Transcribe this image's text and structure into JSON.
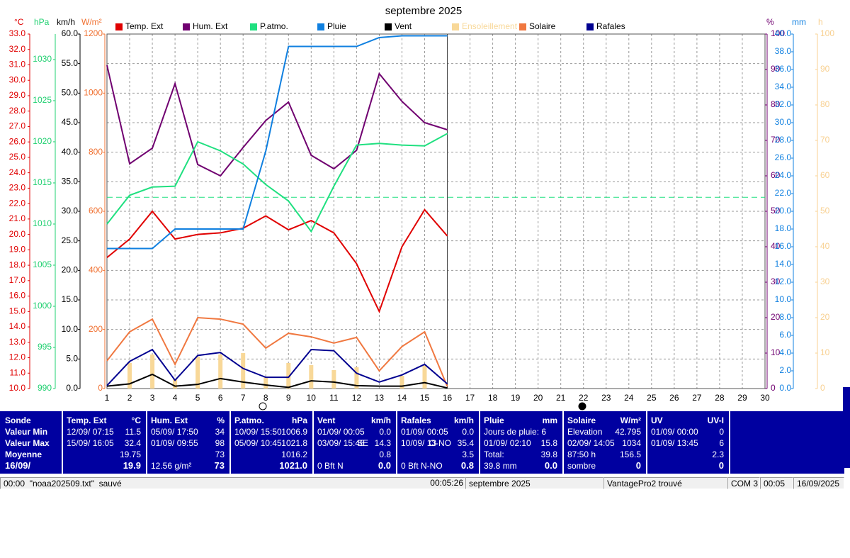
{
  "chart_data": {
    "type": "line",
    "title": "septembre 2025",
    "grid": true,
    "xlim": [
      1,
      30
    ],
    "xticks": [
      1,
      2,
      3,
      4,
      5,
      6,
      7,
      8,
      9,
      10,
      11,
      12,
      13,
      14,
      15,
      16,
      17,
      18,
      19,
      20,
      21,
      22,
      23,
      24,
      25,
      26,
      27,
      28,
      29,
      30
    ],
    "x": [
      1,
      2,
      3,
      4,
      5,
      6,
      7,
      8,
      9,
      10,
      11,
      12,
      13,
      14,
      15,
      16
    ],
    "axes": [
      {
        "unit": "°C",
        "side": "left",
        "color": "#e00000",
        "lim": [
          10,
          33
        ],
        "ticks": [
          {
            "value": 10,
            "label": "10.0"
          },
          {
            "value": 11,
            "label": "11.0"
          },
          {
            "value": 12,
            "label": "12.0"
          },
          {
            "value": 13,
            "label": "13.0"
          },
          {
            "value": 14,
            "label": "14.0"
          },
          {
            "value": 15,
            "label": "15.0"
          },
          {
            "value": 16,
            "label": "16.0"
          },
          {
            "value": 17,
            "label": "17.0"
          },
          {
            "value": 18,
            "label": "18.0"
          },
          {
            "value": 19,
            "label": "19.0"
          },
          {
            "value": 20,
            "label": "20.0"
          },
          {
            "value": 21,
            "label": "21.0"
          },
          {
            "value": 22,
            "label": "22.0"
          },
          {
            "value": 23,
            "label": "23.0"
          },
          {
            "value": 24,
            "label": "24.0"
          },
          {
            "value": 25,
            "label": "25.0"
          },
          {
            "value": 26,
            "label": "26.0"
          },
          {
            "value": 27,
            "label": "27.0"
          },
          {
            "value": 28,
            "label": "28.0"
          },
          {
            "value": 29,
            "label": "29.0"
          },
          {
            "value": 30,
            "label": "30.0"
          },
          {
            "value": 31,
            "label": "31.0"
          },
          {
            "value": 32,
            "label": "32.0"
          },
          {
            "value": 33,
            "label": "33.0"
          }
        ]
      },
      {
        "unit": "hPa",
        "side": "left",
        "color": "#20d070",
        "lim": [
          990,
          1033.1
        ],
        "ticks": [
          990,
          995,
          1000,
          1005,
          1010,
          1015,
          1020,
          1025,
          1030
        ]
      },
      {
        "unit": "km/h",
        "side": "left",
        "color": "#000000",
        "lim": [
          0,
          60
        ],
        "ticks": [
          {
            "value": 0,
            "label": "0.0"
          },
          {
            "value": 5,
            "label": "5.0"
          },
          {
            "value": 10,
            "label": "10.0"
          },
          {
            "value": 15,
            "label": "15.0"
          },
          {
            "value": 20,
            "label": "20.0"
          },
          {
            "value": 25,
            "label": "25.0"
          },
          {
            "value": 30,
            "label": "30.0"
          },
          {
            "value": 35,
            "label": "35.0"
          },
          {
            "value": 40,
            "label": "40.0"
          },
          {
            "value": 45,
            "label": "45.0"
          },
          {
            "value": 50,
            "label": "50.0"
          },
          {
            "value": 55,
            "label": "55.0"
          },
          {
            "value": 60,
            "label": "60.0"
          }
        ]
      },
      {
        "unit": "W/m²",
        "side": "left",
        "color": "#f07030",
        "lim": [
          0,
          1200
        ],
        "ticks": [
          0,
          200,
          400,
          600,
          800,
          1000,
          1200
        ]
      },
      {
        "unit": "%",
        "side": "right",
        "color": "#700070",
        "lim": [
          0,
          100
        ],
        "ticks": [
          0,
          10,
          20,
          30,
          40,
          50,
          60,
          70,
          80,
          90,
          100
        ]
      },
      {
        "unit": "mm",
        "side": "right",
        "color": "#1080e0",
        "lim": [
          0,
          40
        ],
        "ticks": [
          {
            "value": 0,
            "label": "0.0"
          },
          {
            "value": 2,
            "label": "2.0"
          },
          {
            "value": 4,
            "label": "4.0"
          },
          {
            "value": 6,
            "label": "6.0"
          },
          {
            "value": 8,
            "label": "8.0"
          },
          {
            "value": 10,
            "label": "10.0"
          },
          {
            "value": 12,
            "label": "12.0"
          },
          {
            "value": 14,
            "label": "14.0"
          },
          {
            "value": 16,
            "label": "16.0"
          },
          {
            "value": 18,
            "label": "18.0"
          },
          {
            "value": 20,
            "label": "20.0"
          },
          {
            "value": 22,
            "label": "22.0"
          },
          {
            "value": 24,
            "label": "24.0"
          },
          {
            "value": 26,
            "label": "26.0"
          },
          {
            "value": 28,
            "label": "28.0"
          },
          {
            "value": 30,
            "label": "30.0"
          },
          {
            "value": 32,
            "label": "32.0"
          },
          {
            "value": 34,
            "label": "34.0"
          },
          {
            "value": 36,
            "label": "36.0"
          },
          {
            "value": 38,
            "label": "38.0"
          },
          {
            "value": 40,
            "label": "40.0"
          }
        ]
      },
      {
        "unit": "h",
        "side": "right",
        "color": "#f8d090",
        "lim": [
          0,
          100
        ],
        "ticks": [
          0,
          10,
          20,
          30,
          40,
          50,
          60,
          70,
          80,
          90,
          100
        ]
      }
    ],
    "series": [
      {
        "name": "Temp. Ext",
        "color": "#e00000",
        "axis": 0,
        "values": [
          18.5,
          19.7,
          21.5,
          19.7,
          20.0,
          20.1,
          20.4,
          21.2,
          20.3,
          20.9,
          20.1,
          18.1,
          15.0,
          19.2,
          21.6,
          19.9
        ]
      },
      {
        "name": "Hum. Ext",
        "color": "#700070",
        "axis": 4,
        "values": [
          91.2,
          63.4,
          67.8,
          86,
          63.2,
          60,
          68,
          75.6,
          80.8,
          65.8,
          62,
          67.2,
          88.8,
          81,
          75,
          73
        ]
      },
      {
        "name": "P.atmo.",
        "color": "#20e080",
        "axis": 1,
        "reference": 1013.25,
        "values": [
          1010.0,
          1013.5,
          1014.5,
          1014.6,
          1020.0,
          1018.9,
          1017.3,
          1014.8,
          1012.8,
          1009.1,
          1014.6,
          1019.6,
          1019.8,
          1019.6,
          1019.5,
          1021.0
        ]
      },
      {
        "name": "Pluie",
        "color": "#1080e0",
        "axis": 5,
        "values": [
          15.8,
          15.8,
          15.8,
          18.0,
          18.0,
          18.0,
          18.0,
          26.8,
          38.6,
          38.6,
          38.6,
          38.6,
          39.6,
          39.8,
          39.8,
          39.8
        ]
      },
      {
        "name": "Vent",
        "color": "#000000",
        "axis": 2,
        "values": [
          0.4,
          0.8,
          2.4,
          0.4,
          0.7,
          1.7,
          1.1,
          0.6,
          0.2,
          1.3,
          1.1,
          0.5,
          0.4,
          0.4,
          1.0,
          0.1
        ]
      },
      {
        "name": "Ensoleillement",
        "color": "#f8d898",
        "axis": 6,
        "type": "bar",
        "values": [
          0,
          7.2,
          9.6,
          2.6,
          9,
          9.6,
          10,
          3.2,
          7.2,
          6.6,
          5.2,
          6,
          0,
          3.6,
          6.6,
          0
        ]
      },
      {
        "name": "Solaire",
        "color": "#f07840",
        "axis": 3,
        "values": [
          94,
          192,
          235,
          82,
          240,
          235,
          218,
          137,
          187,
          175,
          154,
          173,
          60,
          142,
          192,
          7
        ]
      },
      {
        "name": "Rafales",
        "color": "#000090",
        "axis": 2,
        "values": [
          0.5,
          4.6,
          6.6,
          1.4,
          5.6,
          6.1,
          3.4,
          1.9,
          1.9,
          6.6,
          6.4,
          2.6,
          1.1,
          2.3,
          4.1,
          0.8
        ]
      }
    ]
  },
  "table": {
    "label_column": {
      "header": "Sonde",
      "rows": [
        "Valeur Min",
        "Valeur Max",
        "Moyenne",
        "16/09/"
      ]
    },
    "columns": [
      {
        "name": "Temp. Ext",
        "unit": "°C",
        "rows": [
          {
            "left": "12/09/ 07:15",
            "right": "11.5"
          },
          {
            "left": "15/09/ 16:05",
            "right": "32.4"
          },
          {
            "right": "19.75"
          },
          {
            "right": "19.9"
          }
        ]
      },
      {
        "name": "Hum. Ext",
        "unit": "%",
        "rows": [
          {
            "left": "05/09/ 17:50",
            "right": "34"
          },
          {
            "left": "01/09/ 09:55",
            "right": "98"
          },
          {
            "right": "73"
          },
          {
            "left": "12.56 g/m²",
            "right": "73"
          }
        ]
      },
      {
        "name": "P.atmo.",
        "unit": "hPa",
        "rows": [
          {
            "left": "10/09/ 15:50",
            "right": "1006.9"
          },
          {
            "left": "05/09/ 10:45",
            "right": "1021.8"
          },
          {
            "right": "1016.2"
          },
          {
            "right": "1021.0"
          }
        ]
      },
      {
        "name": "Vent",
        "unit": "km/h",
        "rows": [
          {
            "left": "01/09/ 00:05",
            "right": "0.0"
          },
          {
            "left": "03/09/ 15:45",
            "mid": "SE",
            "right": "14.3"
          },
          {
            "right": "0.8"
          },
          {
            "left": "0 Bft N",
            "right": "0.0"
          }
        ]
      },
      {
        "name": "Rafales",
        "unit": "km/h",
        "rows": [
          {
            "left": "01/09/ 00:05",
            "right": "0.0"
          },
          {
            "left": "10/09/ 13",
            "mid": "O-NO",
            "right": "35.4"
          },
          {
            "right": "3.5"
          },
          {
            "left": "0 Bft N-NO",
            "right": "0.8"
          }
        ]
      },
      {
        "name": "Pluie",
        "unit": "mm",
        "rows": [
          {
            "left": "Jours de pluie: 6"
          },
          {
            "left": "01/09/ 02:10",
            "right": "15.8"
          },
          {
            "left": "Total:",
            "right": "39.8"
          },
          {
            "left": "39.8 mm",
            "right": "0.0"
          }
        ]
      },
      {
        "name": "Solaire",
        "unit": "W/m²",
        "rows": [
          {
            "left": "Elevation",
            "right": "42.795"
          },
          {
            "left": "02/09/ 14:05",
            "right": "1034"
          },
          {
            "left": "87:50 h",
            "right": "156.5"
          },
          {
            "left": "sombre",
            "right": "0"
          }
        ]
      },
      {
        "name": "UV",
        "unit": "UV-I",
        "rows": [
          {
            "left": "01/09/ 00:00",
            "right": "0"
          },
          {
            "left": "01/09/ 13:45",
            "right": "6"
          },
          {
            "right": "2.3"
          },
          {
            "right": "0"
          }
        ]
      }
    ]
  },
  "status_bar": {
    "message": "00:00  \"noaa202509.txt\"  sauvé",
    "elapsed": "00:05:26",
    "period": "septembre 2025",
    "station": "VantagePro2 trouvé",
    "port": "COM 3",
    "time": "00:05",
    "date": "16/09/2025"
  }
}
